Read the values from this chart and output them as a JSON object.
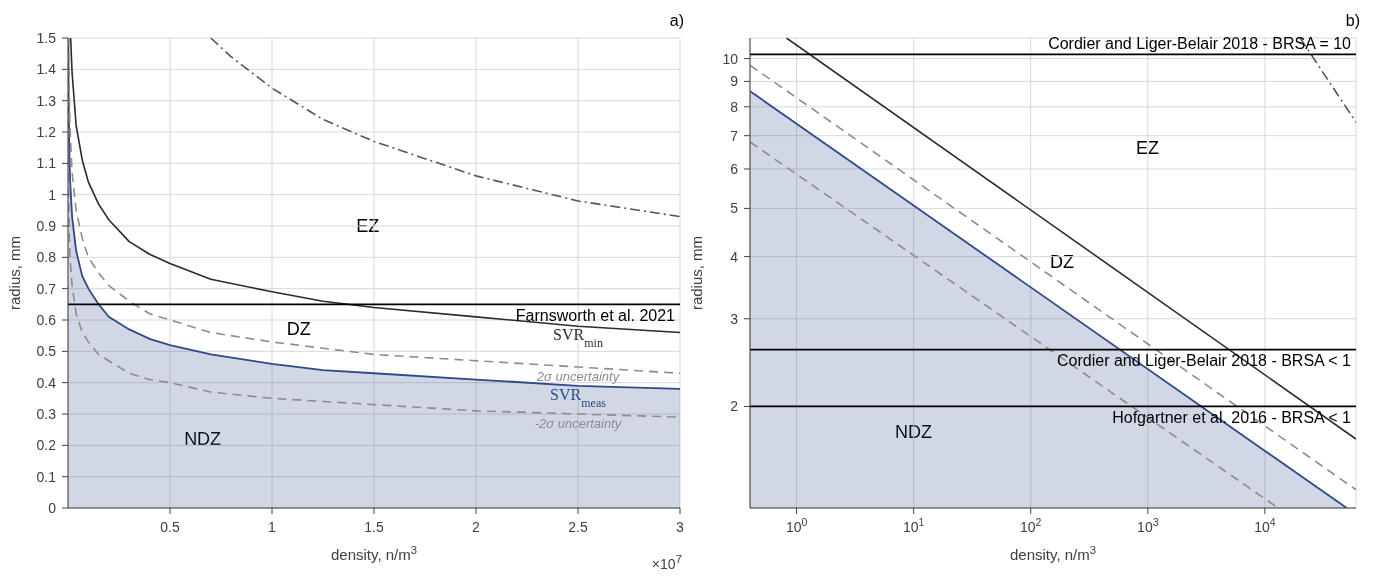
{
  "chart_data": [
    {
      "type": "line",
      "title": "a)",
      "xlabel": "density, n/m$^{3}$",
      "ylabel": "radius, mm",
      "xlim": [
        0,
        3
      ],
      "xticks": [
        0.5,
        1,
        1.5,
        2,
        2.5,
        3
      ],
      "ylim": [
        0,
        1.5
      ],
      "yticks": [
        0,
        0.1,
        0.2,
        0.3,
        0.4,
        0.5,
        0.6,
        0.7,
        0.8,
        0.9,
        1,
        1.1,
        1.2,
        1.3,
        1.4,
        1.5
      ],
      "grid": true,
      "series": [
        {
          "name": "SVR$_{meas}$",
          "type": "area",
          "color": "#2e4a8a",
          "line_style": "solid",
          "x": [
            0.0014,
            0.003,
            0.006,
            0.01,
            0.02,
            0.04,
            0.07,
            0.1,
            0.15,
            0.2,
            0.3,
            0.4,
            0.5,
            0.7,
            1,
            1.25,
            1.5,
            2,
            2.5,
            3
          ],
          "values": [
            1.5,
            1.31,
            1.16,
            1.05,
            0.93,
            0.82,
            0.74,
            0.7,
            0.65,
            0.61,
            0.57,
            0.54,
            0.52,
            0.49,
            0.46,
            0.44,
            0.43,
            0.41,
            0.39,
            0.38
          ]
        },
        {
          "name": "SVR$_{min}$",
          "color": "#2b2b2b",
          "line_style": "solid",
          "x": [
            0.013,
            0.02,
            0.04,
            0.07,
            0.1,
            0.15,
            0.2,
            0.3,
            0.4,
            0.5,
            0.7,
            1,
            1.25,
            1.5,
            2,
            2.5,
            3
          ],
          "values": [
            1.5,
            1.39,
            1.22,
            1.11,
            1.04,
            0.97,
            0.92,
            0.85,
            0.81,
            0.78,
            0.73,
            0.69,
            0.66,
            0.64,
            0.61,
            0.58,
            0.56
          ]
        },
        {
          "name": "2σ uncertainty",
          "color": "#8c8c8c",
          "line_style": "dashed",
          "x": [
            0.0031,
            0.006,
            0.01,
            0.02,
            0.04,
            0.07,
            0.1,
            0.15,
            0.2,
            0.3,
            0.4,
            0.5,
            0.7,
            1,
            1.25,
            1.5,
            2,
            2.5,
            3
          ],
          "values": [
            1.5,
            1.33,
            1.21,
            1.07,
            0.95,
            0.86,
            0.8,
            0.75,
            0.71,
            0.66,
            0.62,
            0.6,
            0.56,
            0.53,
            0.51,
            0.49,
            0.47,
            0.45,
            0.43
          ]
        },
        {
          "name": "-2σ uncertainty",
          "color": "#8c8c8c",
          "line_style": "dashed",
          "x": [
            0.0003,
            0.0014,
            0.003,
            0.006,
            0.01,
            0.02,
            0.04,
            0.07,
            0.1,
            0.15,
            0.2,
            0.3,
            0.4,
            0.5,
            0.7,
            1,
            1.25,
            1.5,
            2,
            2.5,
            3
          ],
          "values": [
            1.5,
            1.14,
            1.0,
            0.88,
            0.8,
            0.71,
            0.62,
            0.56,
            0.53,
            0.49,
            0.47,
            0.43,
            0.41,
            0.4,
            0.37,
            0.35,
            0.34,
            0.33,
            0.31,
            0.3,
            0.29
          ]
        },
        {
          "color": "#555555",
          "line_style": "dashdot",
          "x": [
            0.7,
            0.8,
            1,
            1.25,
            1.5,
            2,
            2.5,
            3
          ],
          "values": [
            1.5,
            1.44,
            1.34,
            1.24,
            1.17,
            1.06,
            0.98,
            0.93
          ]
        }
      ],
      "ref_lines": [
        {
          "axis": "y",
          "value": 0.65,
          "label": "Farnsworth et al. 2021",
          "color": "#000000"
        }
      ],
      "annotations": [
        "EZ",
        "DZ",
        "NDZ",
        "×10$^{7}$"
      ]
    },
    {
      "type": "line",
      "title": "b)",
      "xlabel": "density, n/m$^{3}$",
      "ylabel": "radius, mm",
      "log": "xy",
      "xlim": [
        0.4,
        60000
      ],
      "xticks": [
        {
          "value": 1,
          "label": "10$^{0}$"
        },
        {
          "value": 10,
          "label": "10$^{1}$"
        },
        {
          "value": 100,
          "label": "10$^{2}$"
        },
        {
          "value": 1000,
          "label": "10$^{3}$"
        },
        {
          "value": 10000,
          "label": "10$^{4}$"
        }
      ],
      "ylim": [
        1.25,
        11
      ],
      "yticks": [
        2,
        3,
        4,
        5,
        6,
        7,
        8,
        9,
        10
      ],
      "grid": true,
      "series": [
        {
          "type": "area",
          "color": "#2e4a8a",
          "line_style": "solid",
          "x": [
            0.4,
            50000
          ],
          "values": [
            8.6,
            1.25
          ]
        },
        {
          "color": "#2b2b2b",
          "line_style": "solid",
          "x": [
            0.82,
            60000
          ],
          "values": [
            11,
            1.72
          ]
        },
        {
          "color": "#8c8c8c",
          "line_style": "dashed",
          "x": [
            0.4,
            60000
          ],
          "values": [
            9.7,
            1.36
          ]
        },
        {
          "color": "#8c8c8c",
          "line_style": "dashed",
          "x": [
            0.4,
            13000
          ],
          "values": [
            6.8,
            1.25
          ]
        },
        {
          "color": "#555555",
          "line_style": "dashdot",
          "x": [
            20000,
            60000
          ],
          "values": [
            11,
            7.45
          ]
        }
      ],
      "ref_lines": [
        {
          "axis": "y",
          "value": 10.2,
          "label": "Cordier and Liger-Belair 2018 - BRSA = 10",
          "color": "#000000"
        },
        {
          "axis": "y",
          "value": 2.6,
          "label": "Cordier and Liger-Belair 2018 - BRSA < 1",
          "color": "#000000"
        },
        {
          "axis": "y",
          "value": 2,
          "label": "Hofgartner et al. 2016 - BRSA < 1",
          "color": "#000000"
        }
      ],
      "annotations": [
        "EZ",
        "DZ",
        "NDZ"
      ]
    }
  ]
}
